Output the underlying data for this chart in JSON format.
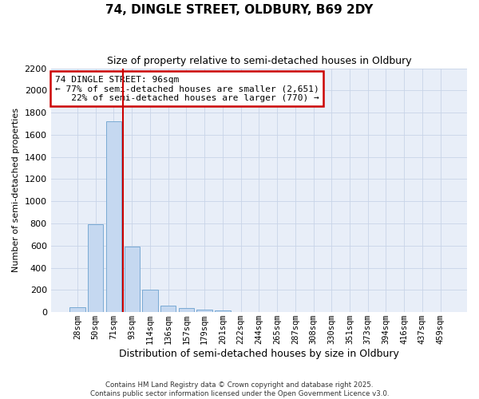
{
  "title": "74, DINGLE STREET, OLDBURY, B69 2DY",
  "subtitle": "Size of property relative to semi-detached houses in Oldbury",
  "xlabel": "Distribution of semi-detached houses by size in Oldbury",
  "ylabel": "Number of semi-detached properties",
  "categories": [
    "28sqm",
    "50sqm",
    "71sqm",
    "93sqm",
    "114sqm",
    "136sqm",
    "157sqm",
    "179sqm",
    "201sqm",
    "222sqm",
    "244sqm",
    "265sqm",
    "287sqm",
    "308sqm",
    "330sqm",
    "351sqm",
    "373sqm",
    "394sqm",
    "416sqm",
    "437sqm",
    "459sqm"
  ],
  "values": [
    45,
    795,
    1720,
    590,
    200,
    60,
    40,
    25,
    15,
    0,
    0,
    0,
    0,
    0,
    0,
    0,
    0,
    0,
    0,
    0,
    0
  ],
  "bar_color": "#c5d8f0",
  "bar_edge_color": "#7aaad4",
  "grid_color": "#c8d4e8",
  "background_color": "#e8eef8",
  "vline_x": 3.5,
  "vline_color": "#cc0000",
  "annotation_line1": "74 DINGLE STREET: 96sqm",
  "annotation_line2": "← 77% of semi-detached houses are smaller (2,651)",
  "annotation_line3": "   22% of semi-detached houses are larger (770) →",
  "annotation_box_color": "#cc0000",
  "ylim": [
    0,
    2200
  ],
  "yticks": [
    0,
    200,
    400,
    600,
    800,
    1000,
    1200,
    1400,
    1600,
    1800,
    2000,
    2200
  ],
  "footer_line1": "Contains HM Land Registry data © Crown copyright and database right 2025.",
  "footer_line2": "Contains public sector information licensed under the Open Government Licence v3.0.",
  "title_fontsize": 11,
  "subtitle_fontsize": 9,
  "xlabel_fontsize": 9,
  "ylabel_fontsize": 8,
  "annotation_fontsize": 8,
  "tick_fontsize": 7.5,
  "ytick_fontsize": 8
}
